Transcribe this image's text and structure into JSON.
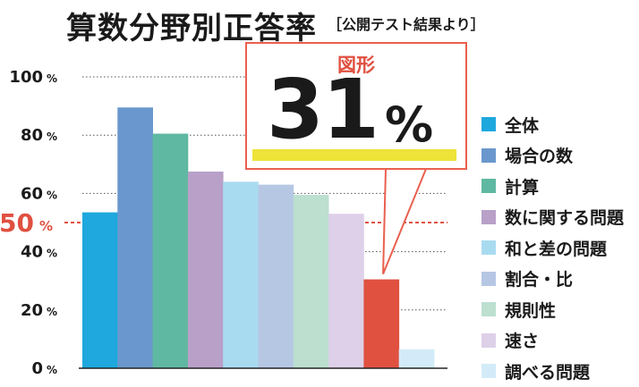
{
  "title": "算数分野別正答率",
  "subtitle": "［公開テスト結果より］",
  "callout": {
    "label": "図形",
    "value": "31",
    "unit": "%"
  },
  "chart_data": {
    "type": "bar",
    "categories": [
      "全体",
      "場合の数",
      "計算",
      "数に関する問題",
      "和と差の問題",
      "割合・比",
      "規則性",
      "速さ",
      "図形",
      "調べる問題"
    ],
    "values": [
      53.5,
      89.5,
      80.5,
      67.5,
      64,
      63,
      59.5,
      53,
      30.5,
      6.5
    ],
    "colors": [
      "#1ea8de",
      "#6a97cd",
      "#5fb8a1",
      "#b8a0c8",
      "#a9dbf0",
      "#b6c7e4",
      "#bcdfd0",
      "#ddd0e8",
      "#e05140",
      "#d3ebf8"
    ],
    "ylim": [
      0,
      100
    ],
    "y_ticks": [
      {
        "value": 0,
        "label": "0",
        "unit": "%"
      },
      {
        "value": 20,
        "label": "20",
        "unit": "%"
      },
      {
        "value": 40,
        "label": "40",
        "unit": "%"
      },
      {
        "value": 60,
        "label": "60",
        "unit": "%"
      },
      {
        "value": 80,
        "label": "80",
        "unit": "%"
      },
      {
        "value": 100,
        "label": "100",
        "unit": "%"
      }
    ],
    "reference_line": {
      "value": 50,
      "label": "50",
      "unit": "%",
      "color": "#e05040"
    },
    "grid": true,
    "legend": {
      "position": "right",
      "entries": [
        {
          "label": "全体",
          "color": "#1ea8de"
        },
        {
          "label": "場合の数",
          "color": "#6a97cd"
        },
        {
          "label": "計算",
          "color": "#5fb8a1"
        },
        {
          "label": "数に関する問題",
          "color": "#b8a0c8"
        },
        {
          "label": "和と差の問題",
          "color": "#a9dbf0"
        },
        {
          "label": "割合・比",
          "color": "#b6c7e4"
        },
        {
          "label": "規則性",
          "color": "#bcdfd0"
        },
        {
          "label": "速さ",
          "color": "#ddd0e8"
        },
        {
          "label": "調べる問題",
          "color": "#d3ebf8"
        }
      ]
    }
  }
}
